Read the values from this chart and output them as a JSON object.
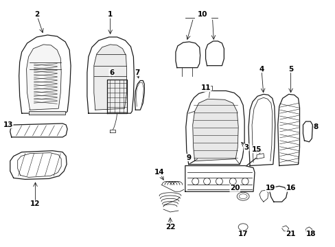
{
  "bg_color": "#ffffff",
  "line_color": "#1a1a1a",
  "text_color": "#000000",
  "fig_width": 4.89,
  "fig_height": 3.6,
  "dpi": 100,
  "lw_main": 0.9,
  "lw_thin": 0.55,
  "lw_hatch": 0.4,
  "fontsize": 7.5
}
